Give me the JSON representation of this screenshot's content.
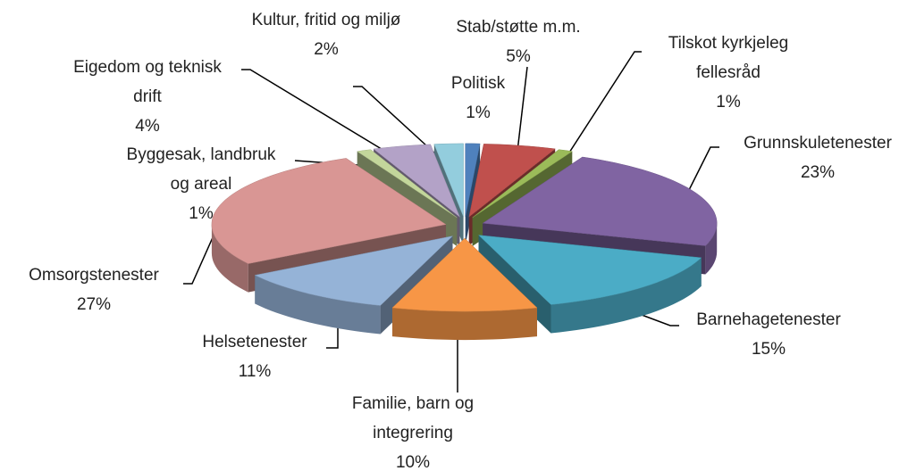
{
  "chart_data": {
    "type": "pie3d",
    "categories": [
      "Politisk",
      "Stab/støtte m.m.",
      "Tilskot kyrkjeleg fellesråd",
      "Grunnskuletenester",
      "Barnehagetenester",
      "Familie, barn og integrering",
      "Helsetenester",
      "Omsorgstenester",
      "Byggesak, landbruk og areal",
      "Eigedom og teknisk drift",
      "Kultur, fritid og miljø"
    ],
    "values": [
      1,
      5,
      1,
      23,
      15,
      10,
      11,
      27,
      1,
      4,
      2
    ],
    "value_labels": [
      "1%",
      "5%",
      "1%",
      "23%",
      "15%",
      "10%",
      "11%",
      "27%",
      "1%",
      "4%",
      "2%"
    ],
    "colors": [
      "#4f81bd",
      "#c0504d",
      "#9bbb59",
      "#8064a2",
      "#4bacc6",
      "#f79646",
      "#95b3d7",
      "#d99694",
      "#c3d69b",
      "#b3a2c7",
      "#93cddd"
    ]
  }
}
